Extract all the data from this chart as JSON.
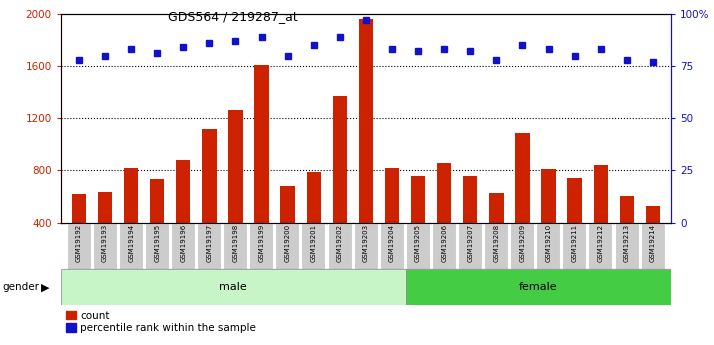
{
  "title": "GDS564 / 219287_at",
  "samples": [
    "GSM19192",
    "GSM19193",
    "GSM19194",
    "GSM19195",
    "GSM19196",
    "GSM19197",
    "GSM19198",
    "GSM19199",
    "GSM19200",
    "GSM19201",
    "GSM19202",
    "GSM19203",
    "GSM19204",
    "GSM19205",
    "GSM19206",
    "GSM19207",
    "GSM19208",
    "GSM19209",
    "GSM19210",
    "GSM19211",
    "GSM19212",
    "GSM19213",
    "GSM19214"
  ],
  "counts": [
    620,
    635,
    820,
    730,
    880,
    1120,
    1260,
    1610,
    680,
    790,
    1370,
    1960,
    820,
    755,
    860,
    760,
    630,
    1090,
    810,
    745,
    840,
    600,
    530
  ],
  "percentiles": [
    78,
    80,
    83,
    81,
    84,
    86,
    87,
    89,
    80,
    85,
    89,
    97,
    83,
    82,
    83,
    82,
    78,
    85,
    83,
    80,
    83,
    78,
    77
  ],
  "male_count": 13,
  "bar_color": "#cc2200",
  "dot_color": "#1111cc",
  "ylim_left": [
    400,
    2000
  ],
  "ylim_right": [
    0,
    100
  ],
  "yticks_left": [
    400,
    800,
    1200,
    1600,
    2000
  ],
  "yticks_right": [
    0,
    25,
    50,
    75,
    100
  ],
  "grid_values": [
    800,
    1200,
    1600
  ],
  "male_color": "#c8f5c8",
  "female_color": "#44cc44",
  "tick_bg_color": "#cccccc",
  "fig_width": 7.14,
  "fig_height": 3.45
}
